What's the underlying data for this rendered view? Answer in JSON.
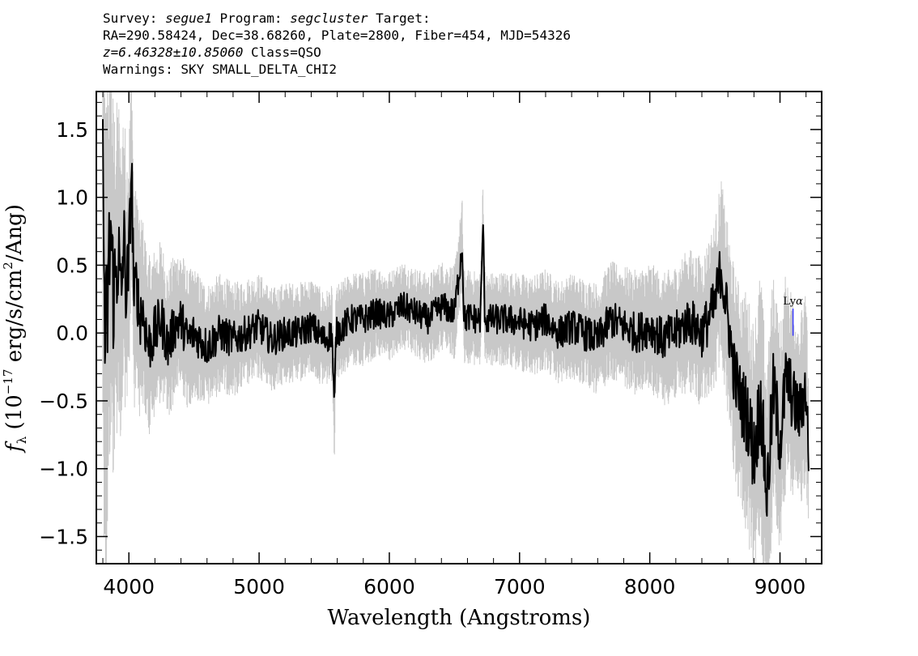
{
  "header": {
    "l1_a": "Survey: ",
    "l1_survey": "segue1",
    "l1_b": " Program: ",
    "l1_program": "segcluster",
    "l1_c": " Target:",
    "l2": "RA=290.58424, Dec=38.68260, Plate=2800, Fiber=454, MJD=54326",
    "l3_z": "z=6.46328±10.85060",
    "l3_class": " Class=QSO",
    "l4": "Warnings: SKY SMALL_DELTA_CHI2"
  },
  "chart_data": {
    "type": "line",
    "title": "",
    "xlabel": "Wavelength (Angstroms)",
    "ylabel": "f_λ (10^-17 erg/s/cm²/Ang)",
    "ylabel_parts": {
      "f": "f",
      "sub": "λ",
      "pre": " (10",
      "exp": "−17",
      "mid": " erg/s/cm",
      "sq": "2",
      "post": "/Ang)"
    },
    "xlim": [
      3750,
      9320
    ],
    "ylim": [
      -1.7,
      1.78
    ],
    "xticks": [
      4000,
      5000,
      6000,
      7000,
      8000,
      9000
    ],
    "xtick_labels": [
      "4000",
      "5000",
      "6000",
      "7000",
      "8000",
      "9000"
    ],
    "yticks": [
      -1.5,
      -1.0,
      -0.5,
      0.0,
      0.5,
      1.0,
      1.5
    ],
    "ytick_labels": [
      "−1.5",
      "−1.0",
      "−0.5",
      "0.0",
      "0.5",
      "1.0",
      "1.5"
    ],
    "series": [
      {
        "role": "flux",
        "color": "#000000",
        "x": [
          3800,
          3820,
          3840,
          3860,
          3880,
          3900,
          3920,
          3940,
          3960,
          3980,
          4000,
          4020,
          4040,
          4060,
          4080,
          4100,
          4150,
          4200,
          4250,
          4300,
          4350,
          4400,
          4450,
          4500,
          4600,
          4700,
          4800,
          4900,
          5000,
          5100,
          5200,
          5300,
          5400,
          5500,
          5560,
          5578,
          5590,
          5650,
          5700,
          5800,
          5900,
          6000,
          6100,
          6200,
          6300,
          6400,
          6500,
          6560,
          6570,
          6580,
          6600,
          6700,
          6720,
          6730,
          6740,
          6800,
          6900,
          7000,
          7100,
          7200,
          7300,
          7400,
          7500,
          7600,
          7700,
          7800,
          7900,
          8000,
          8100,
          8200,
          8300,
          8400,
          8500,
          8550,
          8570,
          8600,
          8650,
          8700,
          8750,
          8800,
          8850,
          8900,
          8950,
          9000,
          9050,
          9100,
          9150,
          9200,
          9220
        ],
        "y": [
          1.1,
          -0.2,
          0.3,
          0.8,
          0.3,
          0.4,
          0.6,
          0.2,
          0.7,
          0.3,
          0.5,
          1.25,
          0.2,
          0.4,
          0.1,
          0.2,
          -0.1,
          0.0,
          0.1,
          -0.1,
          0.05,
          0.1,
          -0.05,
          0.0,
          -0.1,
          0.0,
          -0.05,
          0.0,
          0.05,
          -0.05,
          0.0,
          0.0,
          0.05,
          -0.05,
          0.0,
          -0.6,
          0.0,
          0.05,
          0.1,
          0.1,
          0.15,
          0.12,
          0.2,
          0.15,
          0.1,
          0.2,
          0.15,
          0.65,
          0.2,
          0.1,
          0.12,
          0.1,
          0.85,
          0.2,
          0.1,
          0.1,
          0.1,
          0.08,
          0.05,
          0.1,
          0.0,
          0.05,
          0.0,
          -0.05,
          0.1,
          0.05,
          0.0,
          0.05,
          -0.05,
          0.0,
          0.1,
          0.0,
          0.2,
          0.5,
          0.3,
          0.1,
          -0.3,
          -0.5,
          -0.6,
          -0.9,
          -0.5,
          -1.2,
          -0.4,
          -0.8,
          -0.3,
          -0.5,
          -0.6,
          -0.4,
          -0.9
        ]
      },
      {
        "role": "error",
        "color": "#c8c8c8",
        "x": [
          3800,
          3850,
          3900,
          3950,
          4000,
          4050,
          4100,
          4200,
          4300,
          4400,
          4500,
          4600,
          4800,
          5000,
          5200,
          5400,
          5600,
          5800,
          6000,
          6200,
          6400,
          6600,
          6800,
          7000,
          7200,
          7400,
          7600,
          7800,
          8000,
          8200,
          8400,
          8600,
          8700,
          8800,
          8900,
          9000,
          9100,
          9200
        ],
        "y": [
          1.5,
          1.2,
          0.9,
          0.8,
          0.7,
          0.55,
          0.5,
          0.45,
          0.4,
          0.38,
          0.35,
          0.33,
          0.3,
          0.28,
          0.27,
          0.26,
          0.25,
          0.25,
          0.24,
          0.24,
          0.24,
          0.25,
          0.25,
          0.26,
          0.27,
          0.28,
          0.3,
          0.32,
          0.34,
          0.36,
          0.4,
          0.5,
          0.6,
          0.7,
          0.7,
          0.6,
          0.55,
          0.5
        ]
      }
    ],
    "annotations": [
      {
        "text": "Ly",
        "greek": "α",
        "x": 9100,
        "y": 0.14,
        "line_y": [
          -0.02,
          0.18
        ],
        "color": "#3a3aff"
      }
    ]
  }
}
